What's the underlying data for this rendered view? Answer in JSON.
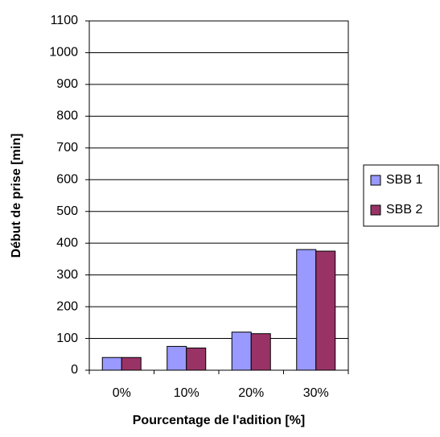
{
  "chart_data": {
    "type": "bar",
    "categories": [
      "0%",
      "10%",
      "20%",
      "30%"
    ],
    "series": [
      {
        "name": "SBB 1",
        "color": "#9999ff",
        "values": [
          40,
          75,
          120,
          380
        ]
      },
      {
        "name": "SBB 2",
        "color": "#993366",
        "values": [
          40,
          70,
          115,
          375
        ]
      }
    ],
    "xlabel": "Pourcentage de l'adition [%]",
    "ylabel": "Début de prise [min]",
    "ylim": [
      0,
      1100
    ],
    "yticks": [
      0,
      100,
      200,
      300,
      400,
      500,
      600,
      700,
      800,
      900,
      1000,
      1100
    ],
    "grid": true,
    "legend": "right"
  }
}
